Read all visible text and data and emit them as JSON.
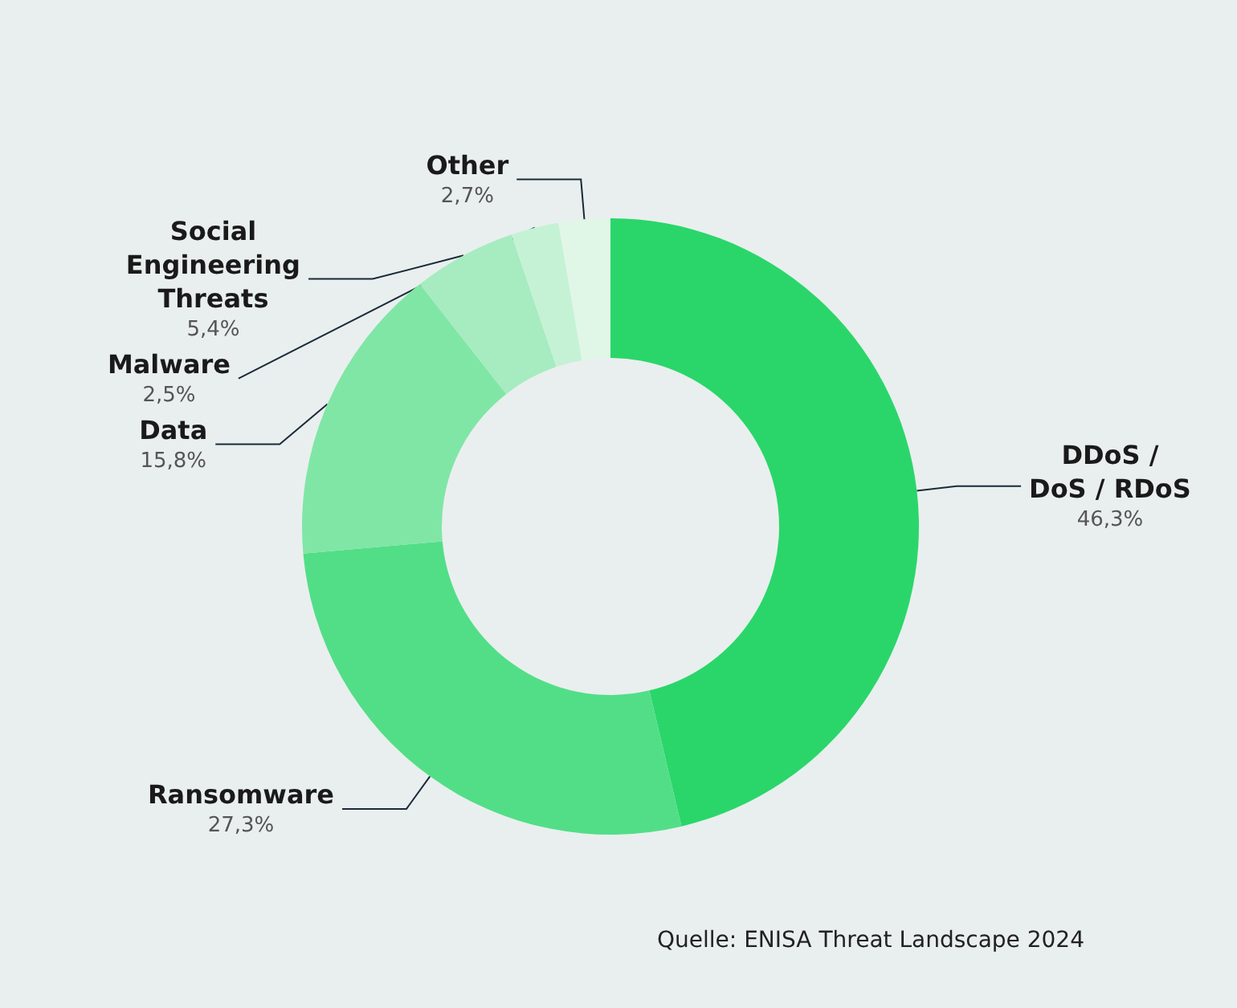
{
  "chart_data": {
    "type": "donut",
    "categories": [
      "DDoS /\nDoS / RDoS",
      "Ransomware",
      "Data",
      "Social\nEngineering\nThreats",
      "Malware",
      "Other"
    ],
    "values": [
      46.3,
      27.3,
      15.8,
      5.4,
      2.5,
      2.7
    ],
    "value_labels": [
      "46,3%",
      "27,3%",
      "15,8%",
      "5,4%",
      "2,5%",
      "2,7%"
    ],
    "colors": [
      "#2ad66a",
      "#52de87",
      "#80e6a6",
      "#a6ecc0",
      "#c5f2d5",
      "#e0f7e8"
    ],
    "annotations": [
      "Quelle: ENISA Threat Landscape 2024"
    ],
    "legend": false
  }
}
